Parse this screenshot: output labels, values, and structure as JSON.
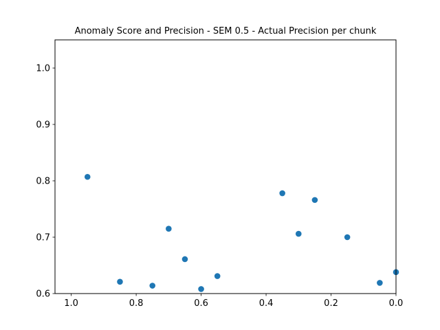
{
  "chart_data": {
    "type": "scatter",
    "title": "Anomaly Score and Precision - SEM 0.5 - Actual Precision per chunk",
    "xlabel": "",
    "ylabel": "",
    "xlim": [
      1.05,
      0.0
    ],
    "ylim": [
      0.6,
      1.05
    ],
    "x_inverted": true,
    "grid": false,
    "x_ticks": [
      "1.0",
      "0.8",
      "0.6",
      "0.4",
      "0.2",
      "0.0"
    ],
    "y_ticks": [
      "0.6",
      "0.7",
      "0.8",
      "0.9",
      "1.0"
    ],
    "marker_color": "#1f77b4",
    "points": [
      {
        "x": 0.95,
        "y": 0.807
      },
      {
        "x": 0.85,
        "y": 0.621
      },
      {
        "x": 0.75,
        "y": 0.614
      },
      {
        "x": 0.7,
        "y": 0.715
      },
      {
        "x": 0.65,
        "y": 0.661
      },
      {
        "x": 0.6,
        "y": 0.608
      },
      {
        "x": 0.55,
        "y": 0.631
      },
      {
        "x": 0.35,
        "y": 0.778
      },
      {
        "x": 0.3,
        "y": 0.706
      },
      {
        "x": 0.25,
        "y": 0.766
      },
      {
        "x": 0.15,
        "y": 0.7
      },
      {
        "x": 0.05,
        "y": 0.619
      },
      {
        "x": 0.0,
        "y": 0.638
      }
    ]
  }
}
